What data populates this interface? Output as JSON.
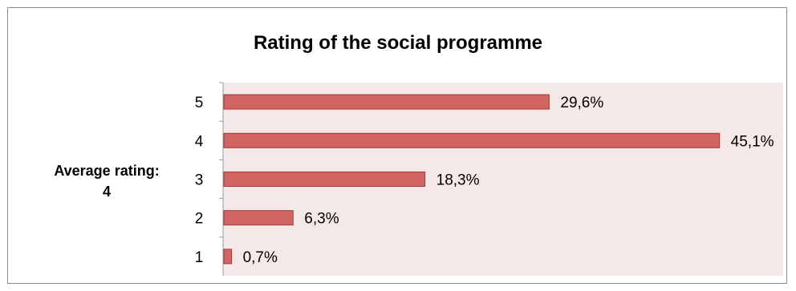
{
  "chart_data": {
    "type": "bar",
    "orientation": "horizontal",
    "title": "Rating of the social programme",
    "categories": [
      "5",
      "4",
      "3",
      "2",
      "1"
    ],
    "values": [
      29.6,
      45.1,
      18.3,
      6.3,
      0.7
    ],
    "data_labels": [
      "29,6%",
      "45,1%",
      "18,3%",
      "6,3%",
      "0,7%"
    ],
    "xlim": [
      0,
      46
    ],
    "annotation": {
      "line1": "Average rating:",
      "line2": "4"
    },
    "colors": {
      "bar_fill": "#d06461",
      "bar_stroke": "#a03c3a",
      "plot_bg": "#f4e9e8",
      "axis": "#999999"
    },
    "grid": false,
    "legend": "none"
  }
}
